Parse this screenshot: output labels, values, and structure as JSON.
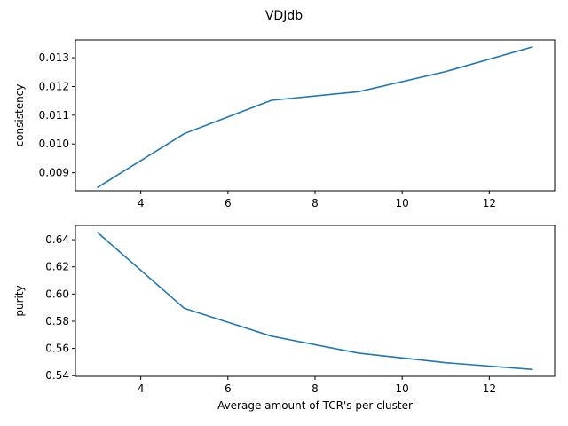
{
  "figure": {
    "title": "VDJdb"
  },
  "colors": {
    "series": "#1f77b4"
  },
  "chart_data": [
    {
      "type": "line",
      "ylabel": "consistency",
      "xlabel": "",
      "x": [
        3,
        5,
        7,
        9,
        11,
        13
      ],
      "series": [
        {
          "values": [
            0.00848,
            0.01036,
            0.01152,
            0.01182,
            0.01252,
            0.01338
          ]
        }
      ],
      "xlim": [
        2.5,
        13.5
      ],
      "ylim": [
        0.00837,
        0.01362
      ],
      "xticks": [
        4,
        6,
        8,
        10,
        12
      ],
      "xtick_labels": [
        "4",
        "6",
        "8",
        "10",
        "12"
      ],
      "yticks": [
        0.009,
        0.01,
        0.011,
        0.012,
        0.013
      ],
      "ytick_labels": [
        "0.009",
        "0.010",
        "0.011",
        "0.012",
        "0.013"
      ],
      "grid": false
    },
    {
      "type": "line",
      "ylabel": "purity",
      "xlabel": "Average amount of TCR's per cluster",
      "x": [
        3,
        5,
        7,
        9,
        11,
        13
      ],
      "series": [
        {
          "values": [
            0.6455,
            0.5895,
            0.569,
            0.5565,
            0.5495,
            0.5445
          ]
        }
      ],
      "xlim": [
        2.5,
        13.5
      ],
      "ylim": [
        0.5395,
        0.6505
      ],
      "xticks": [
        4,
        6,
        8,
        10,
        12
      ],
      "xtick_labels": [
        "4",
        "6",
        "8",
        "10",
        "12"
      ],
      "yticks": [
        0.54,
        0.56,
        0.58,
        0.6,
        0.62,
        0.64
      ],
      "ytick_labels": [
        "0.54",
        "0.56",
        "0.58",
        "0.60",
        "0.62",
        "0.64"
      ],
      "grid": false
    }
  ]
}
